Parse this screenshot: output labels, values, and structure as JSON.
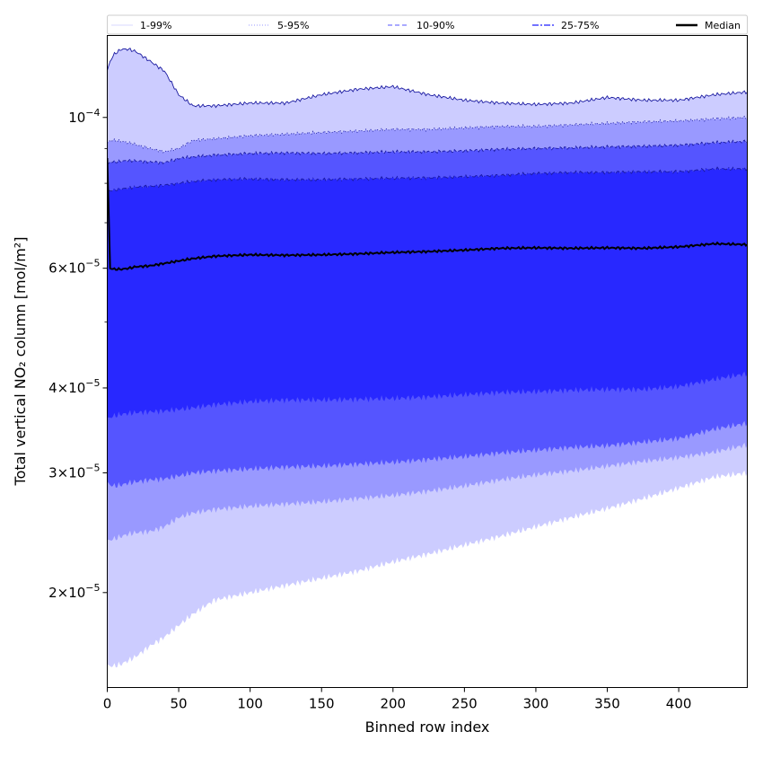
{
  "chart_data": {
    "type": "area",
    "xlabel": "Binned row index",
    "ylabel": "Total vertical NO₂ column [mol/m²]",
    "yscale": "log",
    "xlim": [
      0,
      448
    ],
    "ylim": [
      1.45e-05,
      0.000132
    ],
    "x_ticks": [
      0,
      50,
      100,
      150,
      200,
      250,
      300,
      350,
      400
    ],
    "x_tick_labels": [
      "0",
      "50",
      "100",
      "150",
      "200",
      "250",
      "300",
      "350",
      "400"
    ],
    "y_ticks": [
      2e-05,
      3e-05,
      4e-05,
      6e-05,
      0.0001
    ],
    "y_tick_labels": [
      {
        "mant": "2",
        "exp": "−5"
      },
      {
        "mant": "3",
        "exp": "−5"
      },
      {
        "mant": "4",
        "exp": "−5"
      },
      {
        "mant": "6",
        "exp": "−5"
      },
      {
        "mant": "",
        "exp": "−4"
      }
    ],
    "y_minor_ticks": [
      5e-05,
      7e-05,
      8e-05,
      9e-05
    ],
    "grid": false,
    "legend_position": "top",
    "legend": [
      {
        "label": "1-99%",
        "style": "thin-line",
        "color": "#ccccff"
      },
      {
        "label": "5-95%",
        "style": "dotted",
        "color": "#9999ff"
      },
      {
        "label": "10-90%",
        "style": "dashed",
        "color": "#7777ff"
      },
      {
        "label": "25-75%",
        "style": "dashdot",
        "color": "#4444ff"
      },
      {
        "label": "Median",
        "style": "solid",
        "color": "#000000"
      }
    ],
    "x": [
      0,
      2,
      5,
      10,
      15,
      20,
      30,
      40,
      50,
      60,
      75,
      100,
      125,
      150,
      175,
      200,
      225,
      250,
      275,
      300,
      325,
      350,
      375,
      400,
      425,
      448
    ],
    "series": [
      {
        "name": "1-99%",
        "color": "#ccccff",
        "upper": [
          0.000117,
          0.000121,
          0.000124,
          0.000126,
          0.000126,
          0.000125,
          0.000121,
          0.000117,
          0.000108,
          0.000104,
          0.000104,
          0.000105,
          0.000105,
          0.000108,
          0.00011,
          0.000111,
          0.000108,
          0.000106,
          0.000105,
          0.0001045,
          0.000105,
          0.000107,
          0.000106,
          0.000106,
          0.000108,
          0.000109
        ],
        "lower": [
          1.56e-05,
          1.56e-05,
          1.56e-05,
          1.57e-05,
          1.59e-05,
          1.61e-05,
          1.67e-05,
          1.72e-05,
          1.79e-05,
          1.86e-05,
          1.95e-05,
          2e-05,
          2.05e-05,
          2.1e-05,
          2.15e-05,
          2.22e-05,
          2.28e-05,
          2.35e-05,
          2.42e-05,
          2.5e-05,
          2.58e-05,
          2.66e-05,
          2.75e-05,
          2.85e-05,
          2.96e-05,
          3e-05
        ]
      },
      {
        "name": "5-95%",
        "color": "#9999ff",
        "upper": [
          9.15e-05,
          9.25e-05,
          9.25e-05,
          9.22e-05,
          9.18e-05,
          9.12e-05,
          9e-05,
          8.9e-05,
          9e-05,
          9.25e-05,
          9.3e-05,
          9.4e-05,
          9.45e-05,
          9.5e-05,
          9.55e-05,
          9.6e-05,
          9.6e-05,
          9.65e-05,
          9.7e-05,
          9.7e-05,
          9.75e-05,
          9.8e-05,
          9.85e-05,
          9.88e-05,
          9.95e-05,
          0.0001
        ],
        "lower": [
          2.38e-05,
          2.39e-05,
          2.4e-05,
          2.42e-05,
          2.44e-05,
          2.45e-05,
          2.46e-05,
          2.5e-05,
          2.58e-05,
          2.62e-05,
          2.65e-05,
          2.68e-05,
          2.7e-05,
          2.72e-05,
          2.75e-05,
          2.78e-05,
          2.82e-05,
          2.87e-05,
          2.93e-05,
          2.98e-05,
          3.02e-05,
          3.07e-05,
          3.12e-05,
          3.16e-05,
          3.22e-05,
          3.3e-05
        ]
      },
      {
        "name": "10-90%",
        "color": "#5555ff",
        "upper": [
          8.5e-05,
          8.6e-05,
          8.6e-05,
          8.62e-05,
          8.64e-05,
          8.63e-05,
          8.6e-05,
          8.58e-05,
          8.7e-05,
          8.75e-05,
          8.8e-05,
          8.85e-05,
          8.87e-05,
          8.85e-05,
          8.87e-05,
          8.9e-05,
          8.9e-05,
          8.93e-05,
          8.98e-05,
          9e-05,
          9.02e-05,
          9.05e-05,
          9.07e-05,
          9.1e-05,
          9.18e-05,
          9.22e-05
        ],
        "lower": [
          2.9e-05,
          2.88e-05,
          2.87e-05,
          2.88e-05,
          2.9e-05,
          2.91e-05,
          2.93e-05,
          2.94e-05,
          2.97e-05,
          3e-05,
          3.02e-05,
          3.04e-05,
          3.06e-05,
          3.07e-05,
          3.09e-05,
          3.11e-05,
          3.14e-05,
          3.17e-05,
          3.21e-05,
          3.24e-05,
          3.27e-05,
          3.29e-05,
          3.33e-05,
          3.37e-05,
          3.48e-05,
          3.55e-05
        ]
      },
      {
        "name": "25-75%",
        "color": "#2828ff",
        "upper": [
          7.8e-05,
          7.8e-05,
          7.82e-05,
          7.85e-05,
          7.87e-05,
          7.9e-05,
          7.92e-05,
          7.95e-05,
          8e-05,
          8.05e-05,
          8.1e-05,
          8.12e-05,
          8.1e-05,
          8.1e-05,
          8.12e-05,
          8.14e-05,
          8.15e-05,
          8.18e-05,
          8.22e-05,
          8.27e-05,
          8.3e-05,
          8.3e-05,
          8.32e-05,
          8.32e-05,
          8.4e-05,
          8.4e-05
        ],
        "lower": [
          3.6e-05,
          3.62e-05,
          3.64e-05,
          3.66e-05,
          3.67e-05,
          3.68e-05,
          3.69e-05,
          3.7e-05,
          3.72e-05,
          3.74e-05,
          3.78e-05,
          3.82e-05,
          3.84e-05,
          3.84e-05,
          3.85e-05,
          3.86e-05,
          3.88e-05,
          3.91e-05,
          3.94e-05,
          3.95e-05,
          3.97e-05,
          3.98e-05,
          3.98e-05,
          4.02e-05,
          4.12e-05,
          4.2e-05
        ]
      }
    ],
    "median": {
      "name": "Median",
      "color": "#000000",
      "values": [
        8.7e-05,
        6e-05,
        5.98e-05,
        5.98e-05,
        6e-05,
        6.03e-05,
        6.05e-05,
        6.1e-05,
        6.15e-05,
        6.2e-05,
        6.25e-05,
        6.28e-05,
        6.27e-05,
        6.28e-05,
        6.3e-05,
        6.33e-05,
        6.35e-05,
        6.38e-05,
        6.42e-05,
        6.43e-05,
        6.42e-05,
        6.43e-05,
        6.42e-05,
        6.45e-05,
        6.52e-05,
        6.5e-05
      ]
    }
  }
}
